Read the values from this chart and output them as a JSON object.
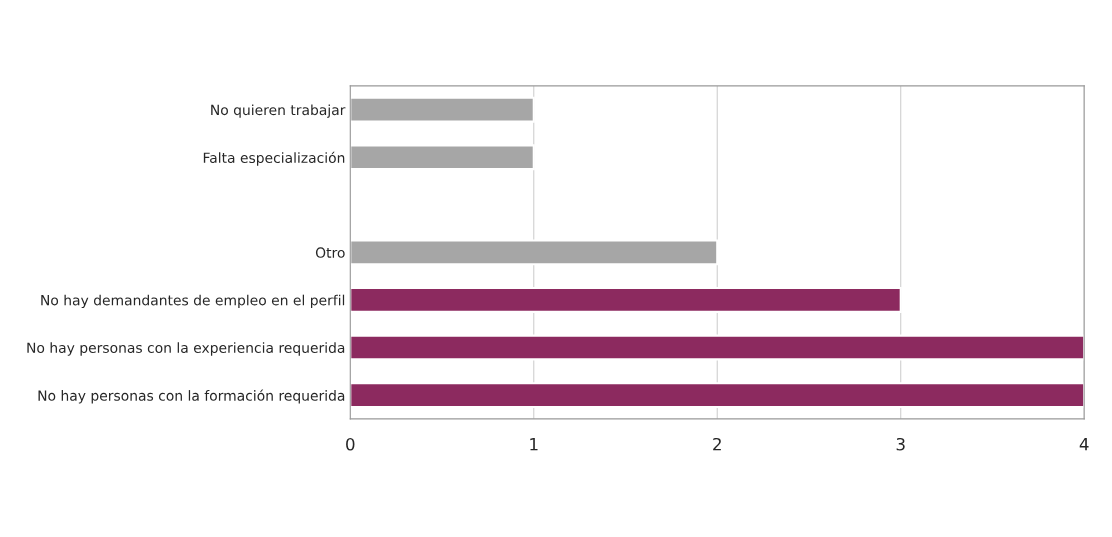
{
  "chart_data": {
    "type": "bar",
    "orientation": "horizontal",
    "categories": [
      "No quieren trabajar",
      "Falta especialización",
      null,
      "Otro",
      "No hay demandantes de empleo en el perfil",
      "No hay personas con la experiencia requerida",
      "No hay personas con la formación requerida"
    ],
    "values": [
      1,
      1,
      null,
      2,
      3,
      4,
      4
    ],
    "colors": [
      "#a6a6a6",
      "#a6a6a6",
      "#a6a6a6",
      "#a6a6a6",
      "#8c2a5f",
      "#8c2a5f",
      "#8c2a5f"
    ],
    "xlim": [
      0,
      4
    ],
    "xticks": [
      0,
      1,
      2,
      3,
      4
    ],
    "grid": "x",
    "legend": false
  }
}
